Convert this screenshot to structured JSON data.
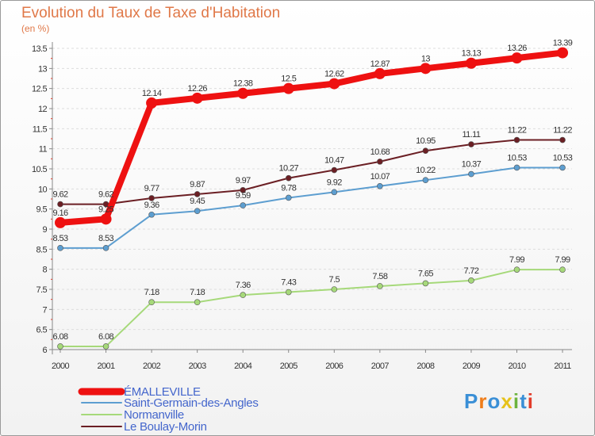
{
  "chart_data": {
    "type": "line",
    "title": "Evolution du Taux de Taxe d'Habitation",
    "unit_label": "(en %)",
    "x": [
      "2000",
      "2001",
      "2002",
      "2003",
      "2004",
      "2005",
      "2006",
      "2007",
      "2008",
      "2009",
      "2010",
      "2011"
    ],
    "ylim": [
      6,
      13.5
    ],
    "yticks": [
      "6",
      "6.5",
      "7",
      "7.5",
      "8",
      "8.5",
      "9",
      "9.5",
      "10",
      "10.5",
      "11",
      "11.5",
      "12",
      "12.5",
      "13",
      "13.5"
    ],
    "series": [
      {
        "name": "Le Boulay-Morin",
        "color": "#6b1f24",
        "values": [
          9.62,
          9.62,
          9.77,
          9.87,
          9.97,
          10.27,
          10.47,
          10.68,
          10.95,
          11.11,
          11.22,
          11.22
        ],
        "labels": [
          "9.62",
          "9.62",
          "9.77",
          "9.87",
          "9.97",
          "10.27",
          "10.47",
          "10.68",
          "10.95",
          "11.11",
          "11.22",
          "11.22"
        ]
      },
      {
        "name": "Saint-Germain-des-Angles",
        "color": "#5d9ed0",
        "values": [
          8.53,
          8.53,
          9.36,
          9.45,
          9.59,
          9.78,
          9.92,
          10.07,
          10.22,
          10.37,
          10.53,
          10.53
        ],
        "labels": [
          "8.53",
          "8.53",
          "9.36",
          "9.45",
          "9.59",
          "9.78",
          "9.92",
          "10.07",
          "10.22",
          "10.37",
          "10.53",
          "10.53"
        ]
      },
      {
        "name": "Normanville",
        "color": "#a6d97a",
        "values": [
          6.08,
          6.08,
          7.18,
          7.18,
          7.36,
          7.43,
          7.5,
          7.58,
          7.65,
          7.72,
          7.99,
          7.99
        ],
        "labels": [
          "6.08",
          "6.08",
          "7.18",
          "7.18",
          "7.36",
          "7.43",
          "7.5",
          "7.58",
          "7.65",
          "7.72",
          "7.99",
          "7.99"
        ]
      },
      {
        "name": "ÉMALLEVILLE",
        "color": "#ee1111",
        "values": [
          9.16,
          9.25,
          12.14,
          12.26,
          12.38,
          12.5,
          12.62,
          12.87,
          13,
          13.13,
          13.26,
          13.39
        ],
        "labels": [
          "9.16",
          "9.25",
          "12.14",
          "12.26",
          "12.38",
          "12.5",
          "12.62",
          "12.87",
          "13",
          "13.13",
          "13.26",
          "13.39"
        ]
      }
    ],
    "legend": [
      "ÉMALLEVILLE",
      "Saint-Germain-des-Angles",
      "Normanville",
      "Le Boulay-Morin"
    ],
    "legend_placement": "bottom-left"
  },
  "logo": {
    "letters": [
      "P",
      "r",
      "o",
      "x",
      "i",
      "t",
      "i"
    ]
  }
}
